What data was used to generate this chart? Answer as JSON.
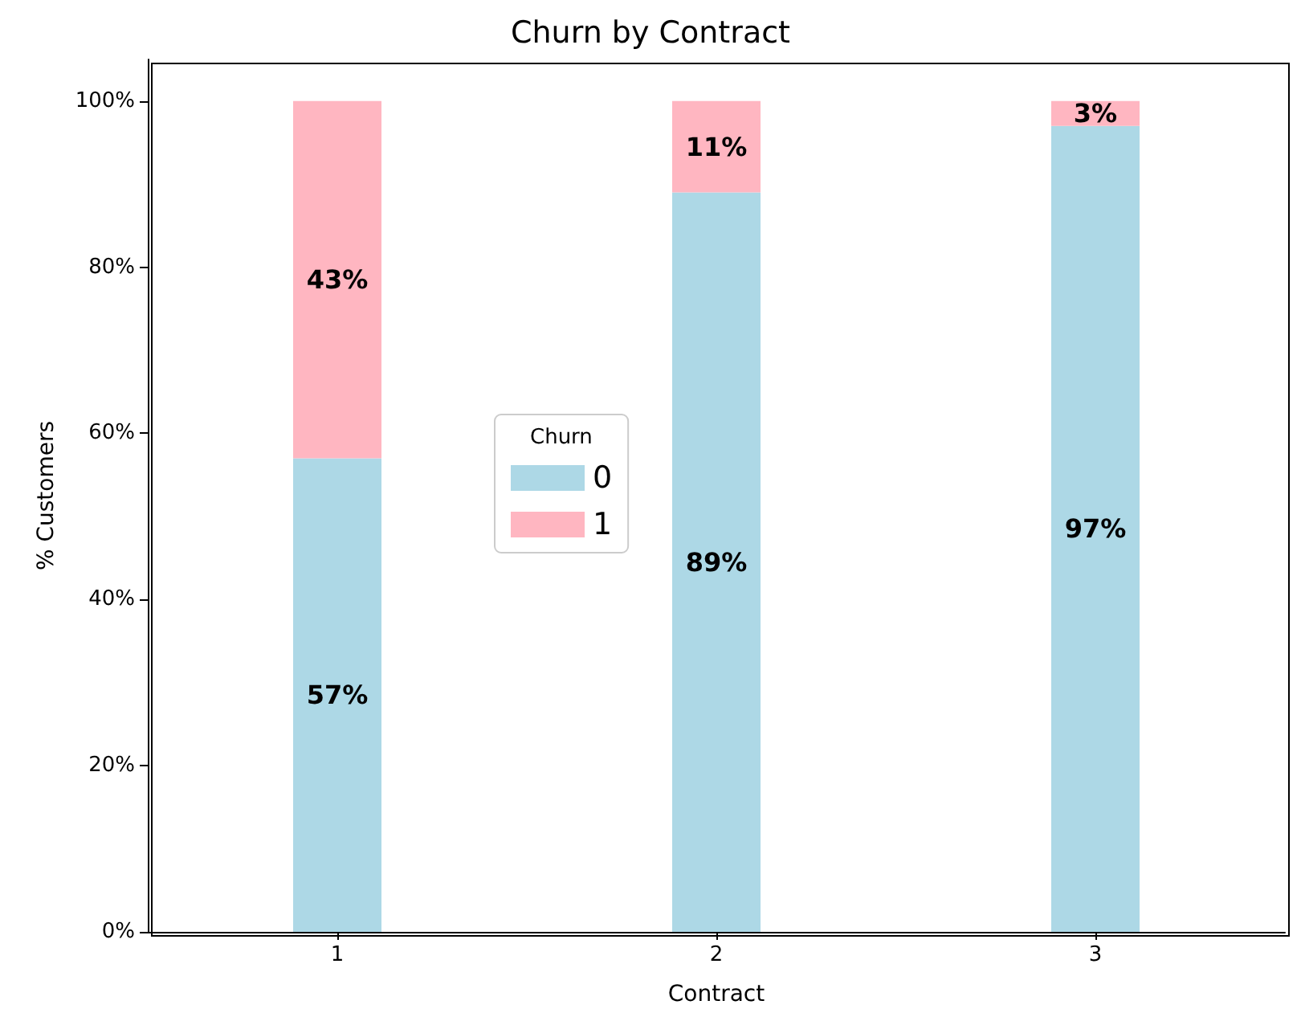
{
  "chart_data": {
    "type": "bar",
    "title": "Churn by Contract",
    "xlabel": "Contract",
    "ylabel": "% Customers",
    "categories": [
      "1",
      "2",
      "3"
    ],
    "stacked": true,
    "series": [
      {
        "name": "0",
        "color": "#add8e6",
        "values": [
          57,
          89,
          97
        ],
        "value_labels": [
          "57%",
          "89%",
          "97%"
        ]
      },
      {
        "name": "1",
        "color": "#ffb6c1",
        "values": [
          43,
          11,
          3
        ],
        "value_labels": [
          "43%",
          "11%",
          "3%"
        ]
      }
    ],
    "ylim": [
      0,
      105
    ],
    "yticks": [
      {
        "value": 0,
        "label": "0%"
      },
      {
        "value": 20,
        "label": "20%"
      },
      {
        "value": 40,
        "label": "40%"
      },
      {
        "value": 60,
        "label": "60%"
      },
      {
        "value": 80,
        "label": "80%"
      },
      {
        "value": 100,
        "label": "100%"
      }
    ],
    "legend_title": "Churn",
    "legend": "center",
    "grid": false
  }
}
